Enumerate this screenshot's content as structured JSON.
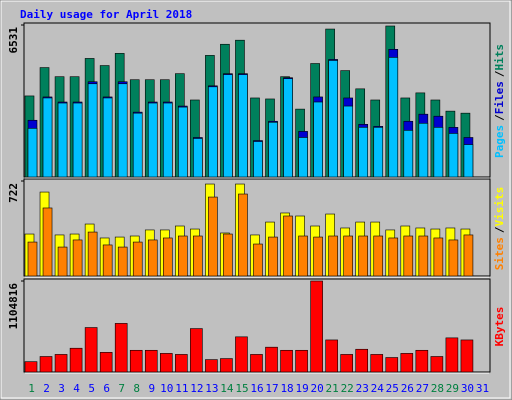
{
  "chart_data": [
    {
      "type": "bar",
      "title": "Daily usage for April 2018",
      "separator": "/",
      "ylim": [
        0,
        6531
      ],
      "yticks": [
        6531
      ],
      "series": [
        {
          "name": "Hits",
          "color": "#00805c",
          "values": [
            3483,
            4702,
            4310,
            4310,
            5094,
            4789,
            5312,
            4180,
            4180,
            4180,
            4441,
            3309,
            5225,
            5704,
            5878,
            3396,
            3353,
            4310,
            2917,
            4876,
            6357,
            4572,
            3788,
            3309,
            6488,
            3396,
            3614,
            3309,
            2830,
            2743,
            null
          ]
        },
        {
          "name": "Files",
          "color": "#0000d0",
          "values": [
            2438,
            3440,
            3222,
            3222,
            4093,
            3440,
            4093,
            2787,
            3222,
            3222,
            3048,
            1698,
            3918,
            4441,
            4441,
            1567,
            2395,
            4267,
            1959,
            3440,
            5051,
            3396,
            2264,
            2177,
            5486,
            2395,
            2699,
            2612,
            2133,
            1698,
            null
          ]
        },
        {
          "name": "Pages",
          "color": "#00c0ff",
          "values": [
            2090,
            3396,
            3178,
            3178,
            4006,
            3396,
            4006,
            2743,
            3178,
            3178,
            3004,
            1655,
            3875,
            4398,
            4398,
            1524,
            2351,
            4223,
            1698,
            3222,
            5007,
            3048,
            2133,
            2133,
            5138,
            2003,
            2308,
            2133,
            1872,
            1393,
            null
          ]
        }
      ]
    },
    {
      "type": "bar",
      "ylim": [
        0,
        722
      ],
      "yticks": [
        722
      ],
      "series": [
        {
          "name": "Visits",
          "color": "#ffff00",
          "values": [
            319,
            638,
            312,
            319,
            395,
            289,
            296,
            304,
            350,
            350,
            380,
            357,
            699,
            327,
            699,
            312,
            410,
            479,
            456,
            380,
            471,
            365,
            410,
            410,
            350,
            380,
            365,
            357,
            365,
            357,
            null
          ]
        },
        {
          "name": "Sites",
          "color": "#ff8000",
          "values": [
            258,
            517,
            220,
            274,
            334,
            236,
            220,
            258,
            274,
            289,
            304,
            304,
            600,
            319,
            623,
            243,
            296,
            456,
            304,
            296,
            304,
            304,
            304,
            304,
            289,
            304,
            304,
            289,
            274,
            312,
            null
          ]
        }
      ]
    },
    {
      "type": "bar",
      "ylim": [
        0,
        1104816
      ],
      "yticks": [
        1104816
      ],
      "categories": [
        "1",
        "2",
        "3",
        "4",
        "5",
        "6",
        "7",
        "8",
        "9",
        "10",
        "11",
        "12",
        "13",
        "14",
        "15",
        "16",
        "17",
        "18",
        "19",
        "20",
        "21",
        "22",
        "23",
        "24",
        "25",
        "26",
        "27",
        "28",
        "29",
        "30",
        "31"
      ],
      "category_colors": [
        "#008040",
        "#0000ff",
        "#0000ff",
        "#0000ff",
        "#0000ff",
        "#0000ff",
        "#008040",
        "#008040",
        "#0000ff",
        "#0000ff",
        "#0000ff",
        "#0000ff",
        "#0000ff",
        "#008040",
        "#008040",
        "#0000ff",
        "#0000ff",
        "#0000ff",
        "#0000ff",
        "#0000ff",
        "#008040",
        "#008040",
        "#0000ff",
        "#0000ff",
        "#0000ff",
        "#0000ff",
        "#0000ff",
        "#008040",
        "#008040",
        "#0000ff",
        "#0000ff"
      ],
      "series": [
        {
          "name": "KBytes",
          "color": "#ff0000",
          "values": [
            125550,
            188325,
            213435,
            288765,
            539865,
            238545,
            590085,
            263655,
            263655,
            225990,
            213435,
            527310,
            150660,
            163215,
            426870,
            213435,
            301320,
            263655,
            263655,
            1104816,
            389205,
            213435,
            276210,
            213435,
            175770,
            225990,
            263655,
            188325,
            414315,
            389205,
            null
          ]
        }
      ]
    }
  ]
}
